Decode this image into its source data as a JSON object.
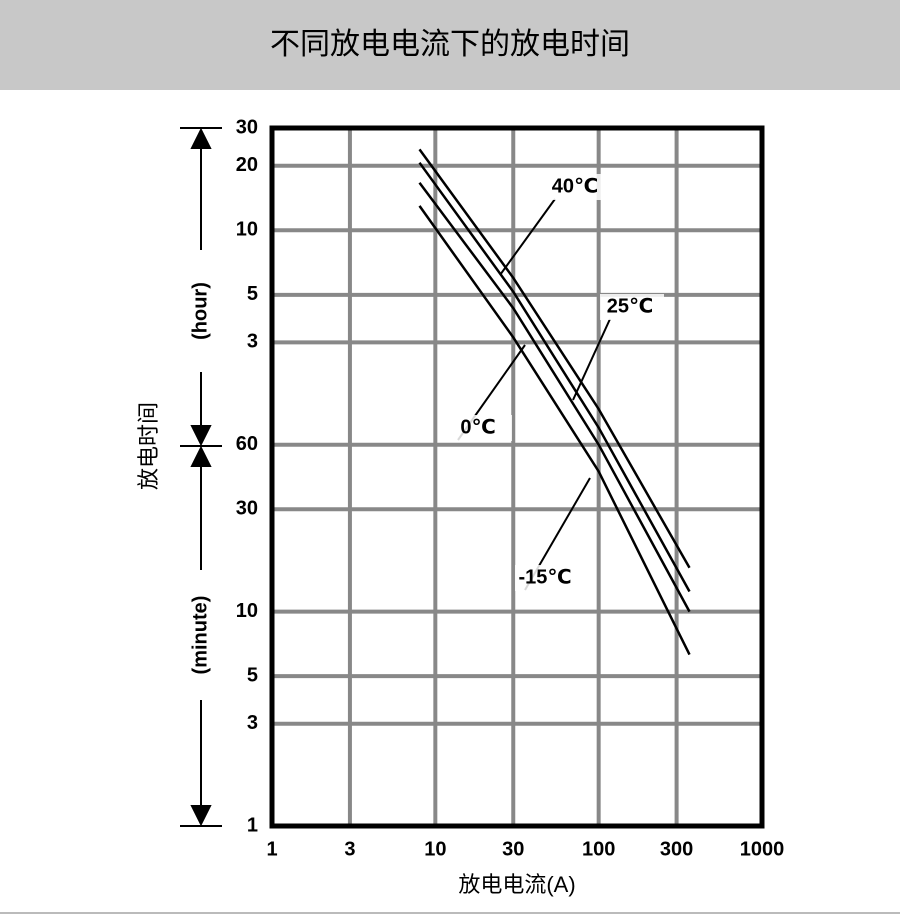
{
  "chart_data": {
    "type": "line",
    "title": "不同放电电流下的放电时间",
    "x_label": "放电电流(A)",
    "y_label": "放电时间",
    "y_upper_label": "(hour)",
    "y_lower_label": "(minute)",
    "log_x": true,
    "log_y": true,
    "grid": true,
    "xlim": [
      1,
      1000
    ],
    "xticks": [
      1,
      3,
      10,
      30,
      100,
      300,
      1000
    ],
    "ylim": [
      1,
      1800
    ],
    "yticks": [
      {
        "value": 1800,
        "label": "30"
      },
      {
        "value": 1200,
        "label": "20"
      },
      {
        "value": 600,
        "label": "10"
      },
      {
        "value": 300,
        "label": "5"
      },
      {
        "value": 180,
        "label": "3"
      },
      60,
      30,
      10,
      5,
      3,
      1
    ],
    "x": [
      8,
      30,
      100,
      360
    ],
    "series": [
      {
        "name": "40℃",
        "color": "#000000",
        "values": [
          1430,
          360,
          88,
          16
        ]
      },
      {
        "name": "25℃",
        "color": "#000000",
        "values": [
          1240,
          310,
          72,
          12.4
        ]
      },
      {
        "name": "0℃",
        "color": "#000000",
        "values": [
          1000,
          260,
          60,
          10
        ]
      },
      {
        "name": "-15℃",
        "color": "#000000",
        "values": [
          780,
          190,
          45,
          6.3
        ]
      }
    ]
  }
}
